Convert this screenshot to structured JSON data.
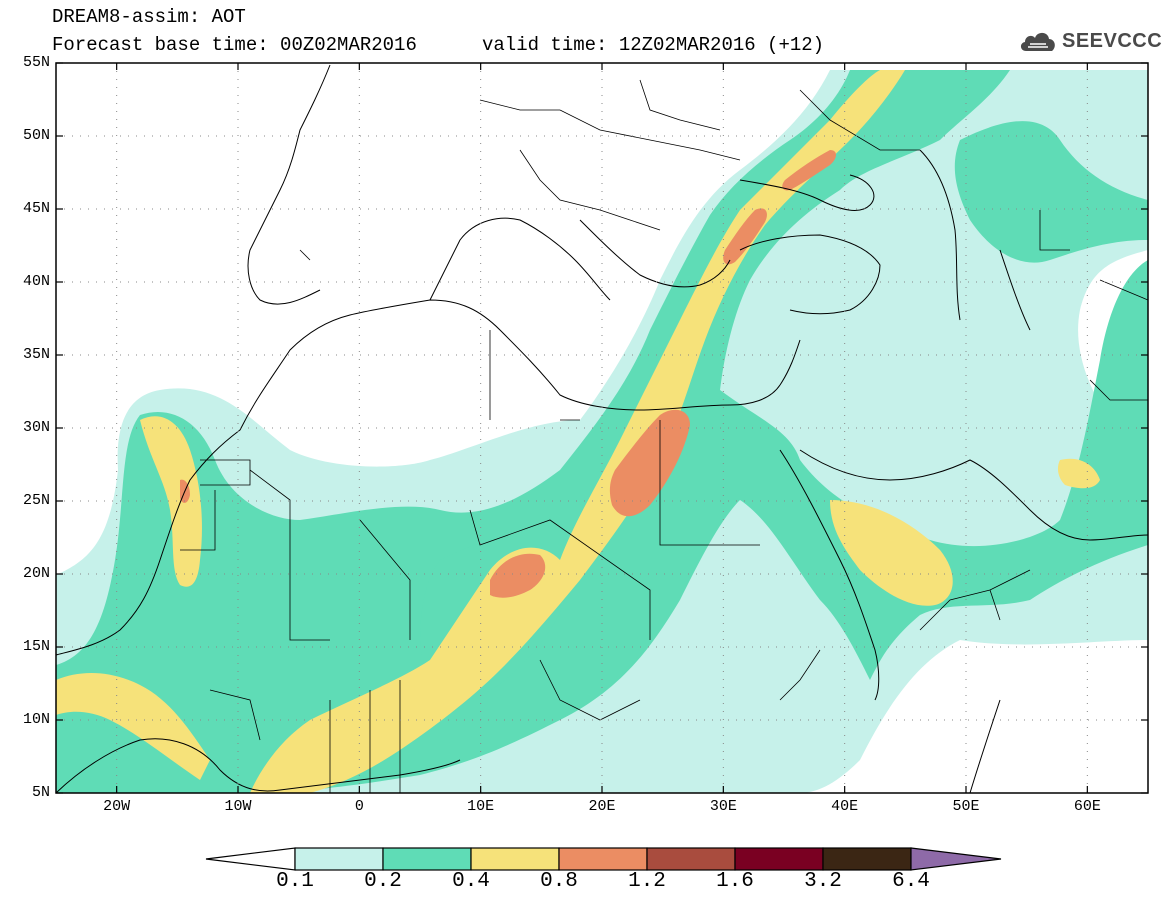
{
  "header": {
    "title": "DREAM8-assim: AOT",
    "base_time": "Forecast base time: 00Z02MAR2016",
    "valid_time": "valid time: 12Z02MAR2016 (+12)",
    "logo": "SEEVCCC"
  },
  "axes": {
    "lon_ticks": [
      "20W",
      "10W",
      "0",
      "10E",
      "20E",
      "30E",
      "40E",
      "50E",
      "60E"
    ],
    "lon_values": [
      -20,
      -10,
      0,
      10,
      20,
      30,
      40,
      50,
      60
    ],
    "lat_ticks": [
      "55N",
      "50N",
      "45N",
      "40N",
      "35N",
      "30N",
      "25N",
      "20N",
      "15N",
      "10N",
      "5N"
    ],
    "lat_values": [
      55,
      50,
      45,
      40,
      35,
      30,
      25,
      20,
      15,
      10,
      5
    ],
    "lon_range": [
      -25,
      65
    ],
    "lat_range": [
      5,
      55
    ],
    "grid": "dotted"
  },
  "colorbar": {
    "labels": [
      "0.1",
      "0.2",
      "0.4",
      "0.8",
      "1.2",
      "1.6",
      "3.2",
      "6.4"
    ],
    "colors": [
      "#c6f1ea",
      "#5fdcb6",
      "#f6e27a",
      "#eb8d63",
      "#a94c3e",
      "#7a0022",
      "#3b2614",
      "#8e6aa8"
    ]
  }
}
